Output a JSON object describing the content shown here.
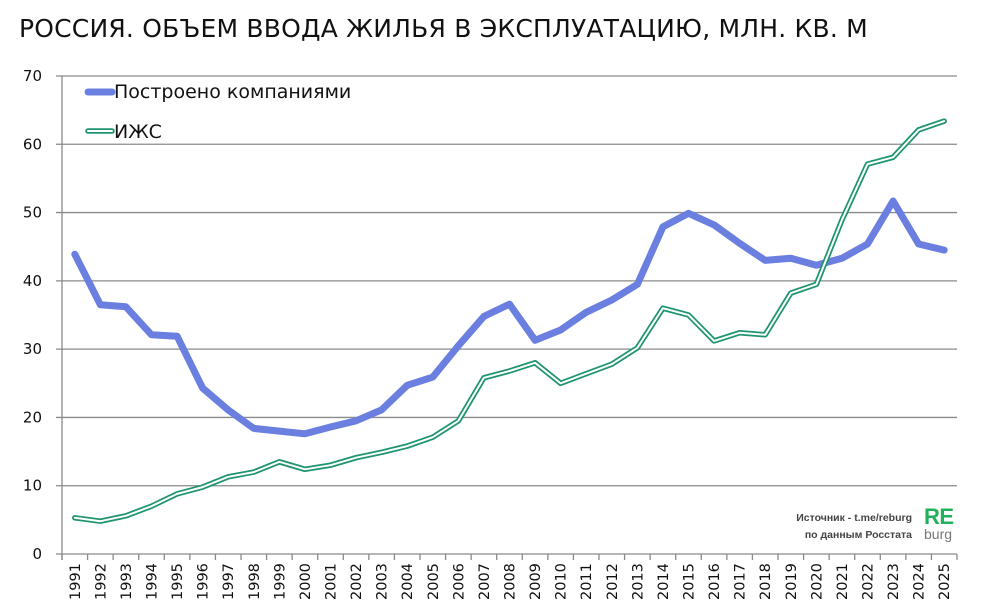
{
  "title": "РОССИЯ. ОБЪЕМ ВВОДА  ЖИЛЬЯ В ЭКСПЛУАТАЦИЮ, МЛН. КВ. М",
  "source": {
    "line1": "Источник - t.me/reburg",
    "line2": "по данным Росстата"
  },
  "logo": {
    "top": "RE",
    "bottom": "burg"
  },
  "colors": {
    "companies": "#6b7fe0",
    "izhs": "#1e9470",
    "grid": "#8a8a8a"
  },
  "chart_data": {
    "type": "line",
    "title": "РОССИЯ. ОБЪЕМ ВВОДА  ЖИЛЬЯ В ЭКСПЛУАТАЦИЮ, МЛН. КВ. М",
    "xlabel": "",
    "ylabel": "",
    "ylim": [
      0,
      70
    ],
    "yticks": [
      0,
      10,
      20,
      30,
      40,
      50,
      60,
      70
    ],
    "grid": true,
    "legend_position": "top-left",
    "categories": [
      "1991",
      "1992",
      "1993",
      "1994",
      "1995",
      "1996",
      "1997",
      "1998",
      "1999",
      "2000",
      "2001",
      "2002",
      "2003",
      "2004",
      "2005",
      "2006",
      "2007",
      "2008",
      "2009",
      "2010",
      "2011",
      "2012",
      "2013",
      "2014",
      "2015",
      "2016",
      "2017",
      "2018",
      "2019",
      "2020",
      "2021",
      "2022",
      "2023",
      "2024",
      "2025"
    ],
    "series": [
      {
        "name": "Построено компаниями",
        "values": [
          43.9,
          36.5,
          36.2,
          32.1,
          31.9,
          24.3,
          21.1,
          18.4,
          18.0,
          17.6,
          18.6,
          19.5,
          21.1,
          24.7,
          25.9,
          30.5,
          34.8,
          36.6,
          31.3,
          32.8,
          35.4,
          37.2,
          39.5,
          47.9,
          49.9,
          48.2,
          45.5,
          43.0,
          43.3,
          42.3,
          43.3,
          45.4,
          51.7,
          45.4,
          44.5
        ]
      },
      {
        "name": "ИЖС",
        "values": [
          5.3,
          4.8,
          5.6,
          7.0,
          8.8,
          9.8,
          11.3,
          12.0,
          13.5,
          12.4,
          13.0,
          14.1,
          14.9,
          15.8,
          17.1,
          19.5,
          25.8,
          26.8,
          28.0,
          25.0,
          26.4,
          27.8,
          30.2,
          36.0,
          35.0,
          31.2,
          32.4,
          32.1,
          38.2,
          39.5,
          48.9,
          57.1,
          58.1,
          62.1,
          63.4
        ]
      }
    ]
  }
}
